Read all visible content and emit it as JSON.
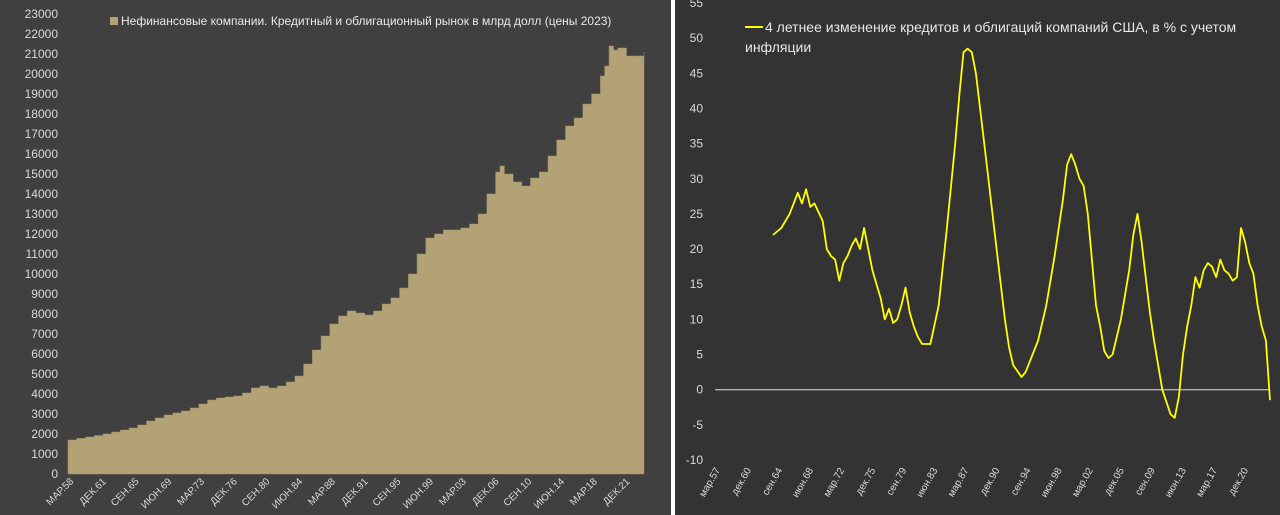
{
  "chart_data": [
    {
      "type": "area",
      "legend": "Нефинансовые компании. Кредитный и облигационный рынок в млрд долл (цены 2023)",
      "color": "#b2a276",
      "grid": false,
      "legend_position": "top-left",
      "ylim": [
        0,
        23000
      ],
      "yticks": [
        0,
        1000,
        2000,
        3000,
        4000,
        5000,
        6000,
        7000,
        8000,
        9000,
        10000,
        11000,
        12000,
        13000,
        14000,
        15000,
        16000,
        17000,
        18000,
        19000,
        20000,
        21000,
        22000,
        23000
      ],
      "xlim": [
        1958.0,
        2024.0
      ],
      "xticks": [
        {
          "label": "МАР.58",
          "x": 1958.0
        },
        {
          "label": "ДЕК.61",
          "x": 1961.75
        },
        {
          "label": "СЕН.65",
          "x": 1965.5
        },
        {
          "label": "ИЮН.69",
          "x": 1969.25
        },
        {
          "label": "МАР.73",
          "x": 1973.0
        },
        {
          "label": "ДЕК.76",
          "x": 1976.75
        },
        {
          "label": "СЕН.80",
          "x": 1980.5
        },
        {
          "label": "ИЮН.84",
          "x": 1984.25
        },
        {
          "label": "МАР.88",
          "x": 1988.0
        },
        {
          "label": "ДЕК.91",
          "x": 1991.75
        },
        {
          "label": "СЕН.95",
          "x": 1995.5
        },
        {
          "label": "ИЮН.99",
          "x": 1999.25
        },
        {
          "label": "МАР.03",
          "x": 2003.0
        },
        {
          "label": "ДЕК.06",
          "x": 2006.75
        },
        {
          "label": "СЕН.10",
          "x": 2010.5
        },
        {
          "label": "ИЮН.14",
          "x": 2014.25
        },
        {
          "label": "МАР.18",
          "x": 2018.0
        },
        {
          "label": "ДЕК.21",
          "x": 2021.75
        }
      ],
      "series": [
        {
          "x": [
            1958.0,
            1959.0,
            1960.0,
            1961.0,
            1962.0,
            1963.0,
            1964.0,
            1965.0,
            1966.0,
            1967.0,
            1968.0,
            1969.0,
            1970.0,
            1971.0,
            1972.0,
            1973.0,
            1974.0,
            1975.0,
            1976.0,
            1977.0,
            1978.0,
            1979.0,
            1980.0,
            1981.0,
            1982.0,
            1983.0,
            1984.0,
            1985.0,
            1986.0,
            1987.0,
            1988.0,
            1989.0,
            1990.0,
            1991.0,
            1992.0,
            1993.0,
            1994.0,
            1995.0,
            1996.0,
            1997.0,
            1998.0,
            1999.0,
            2000.0,
            2001.0,
            2002.0,
            2003.0,
            2004.0,
            2005.0,
            2006.0,
            2007.0,
            2007.5,
            2008.0,
            2009.0,
            2010.0,
            2011.0,
            2012.0,
            2013.0,
            2014.0,
            2015.0,
            2016.0,
            2017.0,
            2018.0,
            2019.0,
            2019.5,
            2020.0,
            2020.5,
            2021.0,
            2022.0,
            2023.0,
            2024.0
          ],
          "y": [
            1700,
            1780,
            1850,
            1920,
            2000,
            2100,
            2200,
            2300,
            2450,
            2650,
            2800,
            2950,
            3050,
            3150,
            3300,
            3500,
            3700,
            3800,
            3850,
            3900,
            4050,
            4300,
            4400,
            4300,
            4400,
            4600,
            4900,
            5500,
            6200,
            6900,
            7500,
            7900,
            8150,
            8050,
            7950,
            8150,
            8500,
            8800,
            9300,
            10000,
            11000,
            11800,
            12000,
            12200,
            12200,
            12300,
            12500,
            13000,
            14000,
            15100,
            15400,
            15000,
            14600,
            14400,
            14800,
            15100,
            15900,
            16700,
            17400,
            17800,
            18500,
            19000,
            19900,
            20400,
            21400,
            21200,
            21300,
            20900,
            20900,
            21100
          ]
        }
      ]
    },
    {
      "type": "line",
      "legend": "4 летнее изменение кредитов и облигаций компаний США, в % с учетом инфляции",
      "color": "#ffff00",
      "grid": false,
      "legend_position": "top-left",
      "ylim": [
        -10,
        55
      ],
      "yticks": [
        -10,
        -5,
        0,
        5,
        10,
        15,
        20,
        25,
        30,
        35,
        40,
        45,
        50,
        55
      ],
      "xlim": [
        1957.0,
        2024.0
      ],
      "xticks": [
        {
          "label": "мар.57",
          "x": 1957.17
        },
        {
          "label": "дек.60",
          "x": 1960.92
        },
        {
          "label": "сен.64",
          "x": 1964.67
        },
        {
          "label": "июн.68",
          "x": 1968.42
        },
        {
          "label": "мар.72",
          "x": 1972.17
        },
        {
          "label": "дек.75",
          "x": 1975.92
        },
        {
          "label": "сен.79",
          "x": 1979.67
        },
        {
          "label": "июн.83",
          "x": 1983.42
        },
        {
          "label": "мар.87",
          "x": 1987.17
        },
        {
          "label": "дек.90",
          "x": 1990.92
        },
        {
          "label": "сен.94",
          "x": 1994.67
        },
        {
          "label": "июн.98",
          "x": 1998.42
        },
        {
          "label": "мар.02",
          "x": 2002.17
        },
        {
          "label": "дек.05",
          "x": 2005.92
        },
        {
          "label": "сен.09",
          "x": 2009.67
        },
        {
          "label": "июн.13",
          "x": 2013.42
        },
        {
          "label": "мар.17",
          "x": 2017.17
        },
        {
          "label": "дек.20",
          "x": 2020.92
        }
      ],
      "series": [
        {
          "x": [
            1964.0,
            1964.5,
            1965.0,
            1966.0,
            1967.0,
            1967.5,
            1968.0,
            1968.5,
            1969.0,
            1970.0,
            1970.5,
            1971.0,
            1971.5,
            1972.0,
            1972.5,
            1973.0,
            1973.5,
            1974.0,
            1974.5,
            1975.0,
            1976.0,
            1976.5,
            1977.0,
            1977.5,
            1978.0,
            1978.5,
            1979.0,
            1979.5,
            1980.0,
            1980.5,
            1981.0,
            1981.5,
            1982.0,
            1983.0,
            1984.0,
            1985.0,
            1986.0,
            1986.5,
            1987.0,
            1987.5,
            1988.0,
            1988.5,
            1989.0,
            1990.0,
            1991.0,
            1992.0,
            1992.5,
            1993.0,
            1994.0,
            1994.5,
            1995.0,
            1996.0,
            1997.0,
            1998.0,
            1999.0,
            1999.5,
            2000.0,
            2000.5,
            2001.0,
            2001.5,
            2002.0,
            2003.0,
            2003.5,
            2004.0,
            2004.5,
            2005.0,
            2006.0,
            2007.0,
            2007.5,
            2008.0,
            2008.5,
            2009.0,
            2009.5,
            2010.0,
            2011.0,
            2012.0,
            2012.5,
            2013.0,
            2013.5,
            2014.0,
            2014.5,
            2015.0,
            2015.5,
            2016.0,
            2016.5,
            2017.0,
            2017.5,
            2018.0,
            2018.5,
            2019.0,
            2019.5,
            2020.0,
            2020.5,
            2021.0,
            2021.5,
            2022.0,
            2022.5,
            2023.0,
            2023.5,
            2024.0
          ],
          "y": [
            22,
            22.5,
            23,
            25,
            28,
            26.5,
            28.5,
            26,
            26.5,
            24,
            20,
            19,
            18.5,
            15.5,
            18,
            19,
            20.5,
            21.5,
            20,
            23,
            17,
            15,
            13,
            10,
            11.5,
            9.5,
            10,
            12,
            14.5,
            11,
            9,
            7.5,
            6.5,
            6.5,
            12,
            23,
            35,
            42,
            48,
            48.5,
            48,
            45,
            40,
            30,
            20,
            10,
            6,
            3.5,
            1.8,
            2.5,
            4,
            7,
            12,
            19,
            27,
            32,
            33.5,
            32,
            30,
            29,
            25,
            12,
            9,
            5.5,
            4.5,
            5,
            10,
            17,
            22,
            25,
            21,
            16,
            11,
            7,
            0,
            -3.5,
            -4,
            -1,
            5,
            9,
            12,
            16,
            14.5,
            17,
            18,
            17.5,
            16,
            18.5,
            17,
            16.5,
            15.5,
            16,
            23,
            21,
            18,
            16.5,
            12,
            9,
            7,
            -1.5
          ]
        }
      ]
    }
  ]
}
